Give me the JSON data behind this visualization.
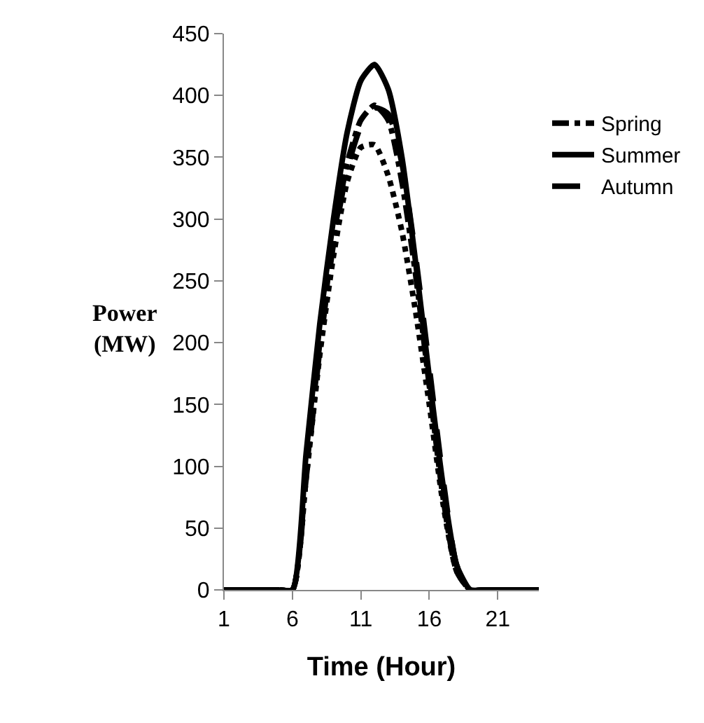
{
  "chart_data": {
    "type": "line",
    "xlabel": "Time (Hour)",
    "ylabel": "Power (MW)",
    "x": [
      1,
      2,
      3,
      4,
      5,
      6,
      7,
      8,
      9,
      10,
      11,
      12,
      13,
      14,
      15,
      16,
      17,
      18,
      19,
      20,
      21,
      22,
      23,
      24
    ],
    "xlim": [
      1,
      24
    ],
    "xticks": [
      1,
      6,
      11,
      16,
      21
    ],
    "ylim": [
      0,
      450
    ],
    "yticks": [
      0,
      50,
      100,
      150,
      200,
      250,
      300,
      350,
      400,
      450
    ],
    "grid": false,
    "legend": "right",
    "marker": "none",
    "series": [
      {
        "name": "Spring",
        "color": "#000000",
        "line_style": "dashdot",
        "values": [
          0,
          0,
          0,
          0,
          0,
          0,
          95,
          200,
          285,
          345,
          380,
          392,
          380,
          330,
          255,
          165,
          75,
          15,
          0,
          0,
          0,
          0,
          0,
          0
        ]
      },
      {
        "name": "Summer",
        "color": "#000000",
        "line_style": "solid",
        "values": [
          0,
          0,
          0,
          0,
          0,
          0,
          110,
          215,
          300,
          370,
          412,
          425,
          405,
          350,
          265,
          172,
          85,
          20,
          0,
          0,
          0,
          0,
          0,
          0
        ]
      },
      {
        "name": "Autumn",
        "color": "#000000",
        "line_style": "dashed",
        "values": [
          0,
          0,
          0,
          0,
          0,
          0,
          90,
          195,
          280,
          340,
          375,
          390,
          385,
          345,
          270,
          180,
          90,
          20,
          0,
          0,
          0,
          0,
          0,
          0
        ]
      },
      {
        "color": "#000000",
        "line_style": "dotted",
        "values": [
          0,
          0,
          0,
          0,
          0,
          0,
          90,
          190,
          270,
          330,
          358,
          360,
          335,
          290,
          225,
          150,
          70,
          15,
          0,
          0,
          0,
          0,
          0,
          0
        ]
      }
    ]
  }
}
